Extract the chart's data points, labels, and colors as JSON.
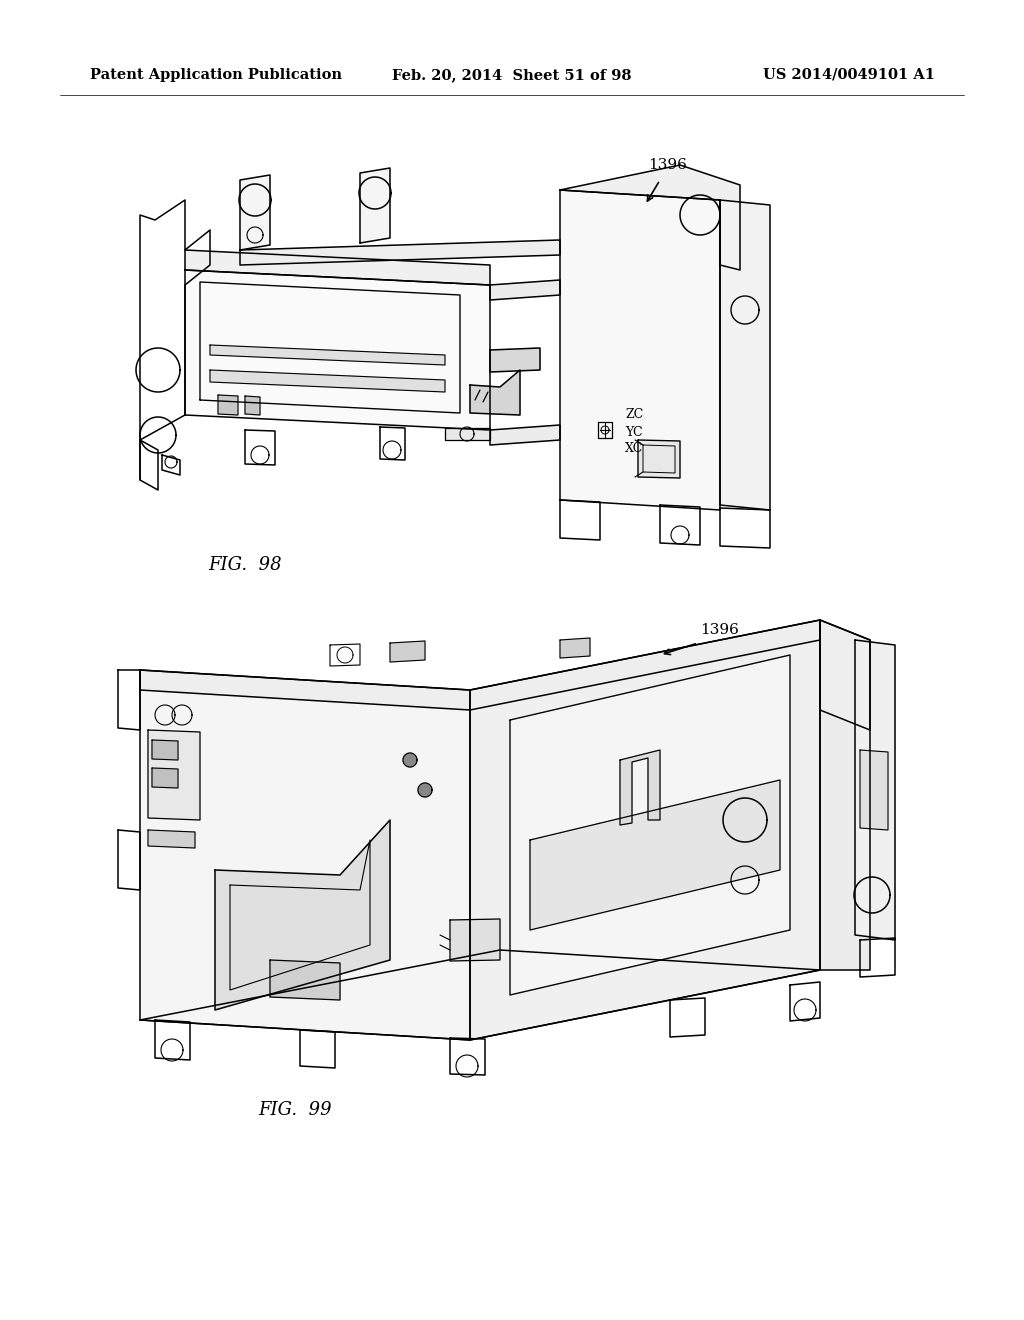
{
  "background_color": "#ffffff",
  "header_left": "Patent Application Publication",
  "header_center": "Feb. 20, 2014  Sheet 51 of 98",
  "header_right": "US 2014/0049101 A1",
  "fig98_label": "FIG.  98",
  "fig99_label": "FIG.  99",
  "header_fontsize": 10.5,
  "label_fontsize": 13,
  "ref_fontsize": 11,
  "axis_label_fontsize": 9
}
